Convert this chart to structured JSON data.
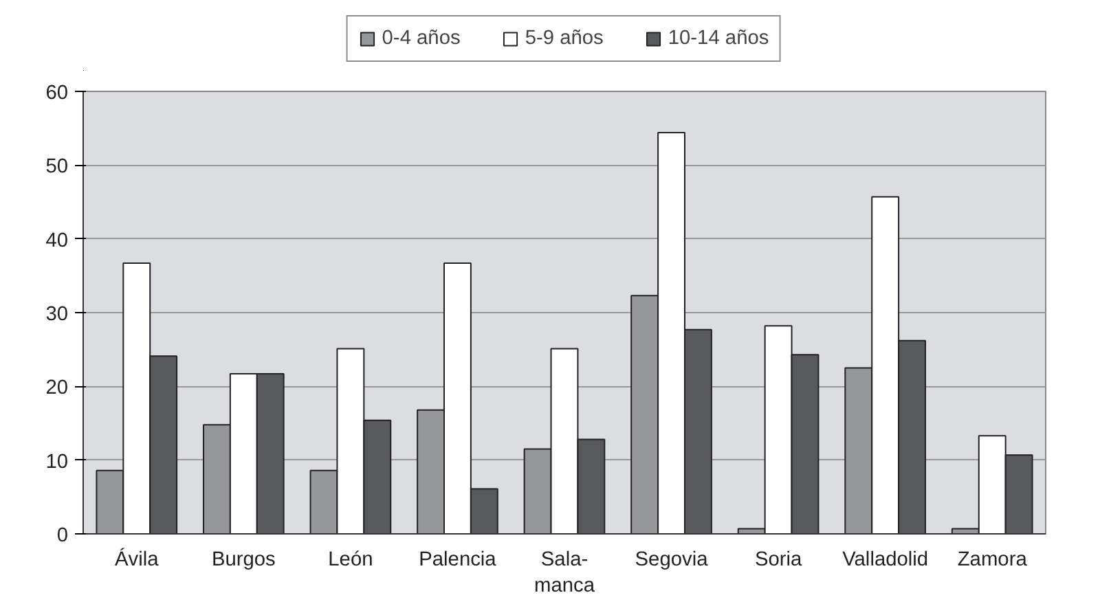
{
  "chart_data": {
    "type": "bar",
    "categories": [
      "Ávila",
      "Burgos",
      "León",
      "Palencia",
      "Sala-\nmanca",
      "Segovia",
      "Soria",
      "Valladolid",
      "Zamora"
    ],
    "series": [
      {
        "name": "0-4 años",
        "color": "#96979b",
        "values": [
          8.6,
          14.8,
          8.6,
          16.8,
          11.5,
          32.3,
          0.7,
          22.5,
          0.7
        ]
      },
      {
        "name": "5-9 años",
        "color": "#ffffff",
        "values": [
          36.7,
          21.7,
          25.1,
          36.7,
          25.1,
          54.4,
          28.2,
          45.7,
          13.3
        ]
      },
      {
        "name": "10-14 años",
        "color": "#58595b",
        "values": [
          24.1,
          21.7,
          15.4,
          6.1,
          12.8,
          27.7,
          24.3,
          26.2,
          10.7
        ]
      }
    ],
    "ylim": [
      0,
      60
    ],
    "yticks": [
      0,
      10,
      20,
      30,
      40,
      50,
      60
    ],
    "grid": "y",
    "legend": "top"
  }
}
